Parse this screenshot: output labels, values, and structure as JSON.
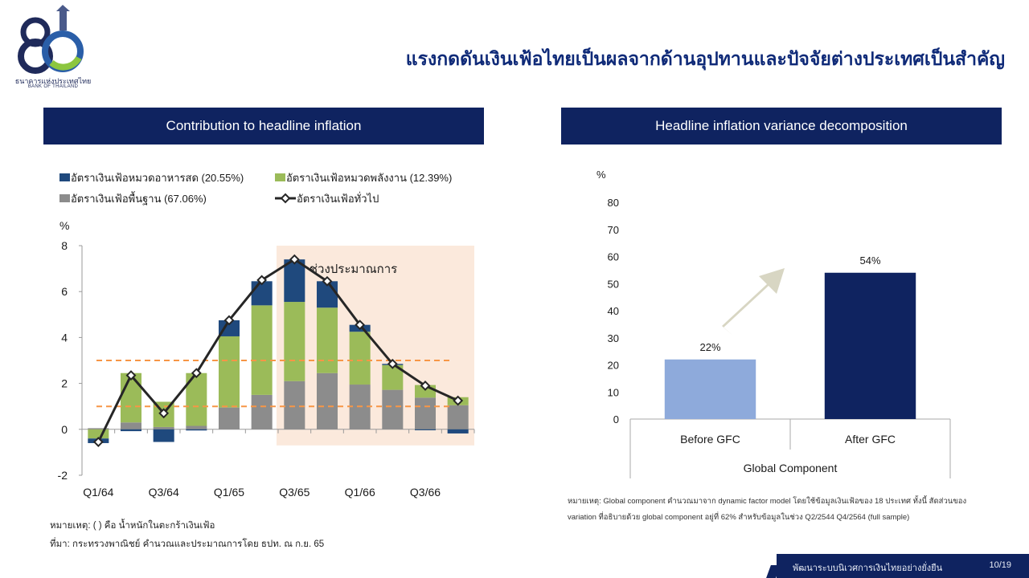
{
  "header": {
    "logo_text_th": "ธนาคารแห่งประเทศไทย",
    "logo_text_en": "BANK OF THAILAND",
    "title": "แรงกดดันเงินเฟ้อไทยเป็นผลจากด้านอุปทานและปัจจัยต่างประเทศเป็นสำคัญ"
  },
  "left_panel": {
    "header": "Contribution to headline inflation",
    "note": "หมายเหตุ: ( ) คือ น้ำหนักในตะกร้าเงินเฟ้อ",
    "source": "ที่มา: กระทรวงพาณิชย์ คำนวณและประมาณการโดย ธปท. ณ ก.ย. 65"
  },
  "right_panel": {
    "header": "Headline inflation variance decomposition",
    "note_line1": "หมายเหตุ: Global component คำนวณมาจาก dynamic factor model โดยใช้ข้อมูลเงินเฟ้อของ 18 ประเทศ ทั้งนี้ สัดส่วนของ",
    "note_line2": "variation ที่อธิบายด้วย global component อยู่ที่ 62% สำหรับข้อมูลในช่วง Q2/2544 Q4/2564 (full sample)"
  },
  "footer": {
    "title": "พัฒนาระบบนิเวศการเงินไทยอย่างยั่งยืน",
    "page": "10/19"
  },
  "chart_data": [
    {
      "type": "bar",
      "stacked": true,
      "ylabel": "%",
      "ylim": [
        -2,
        8
      ],
      "yticks": [
        -2,
        0,
        2,
        4,
        6,
        8
      ],
      "xtick_labels": [
        "Q1/64",
        "Q3/64",
        "Q1/65",
        "Q3/65",
        "Q1/66",
        "Q3/66"
      ],
      "categories": [
        "Q1/64",
        "Q2/64",
        "Q3/64",
        "Q4/64",
        "Q1/65",
        "Q2/65",
        "Q3/65",
        "Q4/65",
        "Q1/66",
        "Q2/66",
        "Q3/66",
        "Q4/66"
      ],
      "series": [
        {
          "name": "อัตราเงินเฟ้อพื้นฐาน (67.06%)",
          "kind": "bar",
          "color": "#8c8c8c",
          "values": [
            0.05,
            0.3,
            0.1,
            0.15,
            0.95,
            1.5,
            2.1,
            2.45,
            1.95,
            1.72,
            1.38,
            1.05
          ]
        },
        {
          "name": "อัตราเงินเฟ้อหมวดพลังงาน (12.39%)",
          "kind": "bar",
          "color": "#9bbb59",
          "values": [
            -0.4,
            2.15,
            1.1,
            2.3,
            3.1,
            3.9,
            3.45,
            2.85,
            2.3,
            1.08,
            0.55,
            0.35
          ]
        },
        {
          "name": "อัตราเงินเฟ้อหมวดอาหารสด (20.55%)",
          "kind": "bar",
          "color": "#1f497d",
          "values": [
            -0.2,
            -0.08,
            -0.55,
            -0.05,
            0.7,
            1.05,
            1.85,
            1.15,
            0.3,
            0.05,
            -0.04,
            -0.18
          ]
        },
        {
          "name": "อัตราเงินเฟ้อทั่วไป",
          "kind": "line",
          "color": "#262626",
          "values": [
            -0.55,
            2.35,
            0.7,
            2.45,
            4.75,
            6.5,
            7.4,
            6.45,
            4.55,
            2.85,
            1.9,
            1.25
          ]
        }
      ],
      "reference_lines": [
        1,
        3
      ],
      "reference_line_color": "#f79646",
      "forecast": {
        "label": "ช่วงประมาณการ",
        "from": "Q3/65",
        "to": "Q4/66",
        "color": "#fbe9dc"
      }
    },
    {
      "type": "bar",
      "ylabel": "%",
      "ylim": [
        0,
        80
      ],
      "yticks": [
        0,
        10,
        20,
        30,
        40,
        50,
        60,
        70,
        80
      ],
      "categories": [
        "Before GFC",
        "After GFC"
      ],
      "values": [
        22,
        54
      ],
      "value_labels": [
        "22%",
        "54%"
      ],
      "colors": [
        "#8eaadb",
        "#0f2360"
      ],
      "xlabel": "Global Component",
      "arrow_color": "#d8d6c3"
    }
  ]
}
